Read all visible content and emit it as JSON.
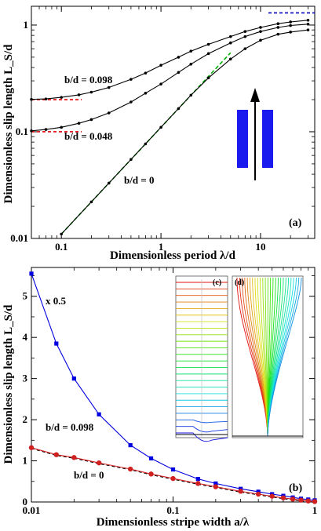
{
  "chart_data": [
    {
      "type": "line",
      "panel_label": "(a)",
      "xlabel": "Dimensionless period  λ/d",
      "ylabel": "Dimensionless slip length  L_S/d",
      "xscale": "log",
      "yscale": "log",
      "xlim": [
        0.05,
        35
      ],
      "ylim": [
        0.01,
        1.5
      ],
      "xticks": [
        "0.1",
        "1",
        "10"
      ],
      "yticks": [
        "0.01",
        "0.1",
        "1"
      ],
      "grid": false,
      "series": [
        {
          "name": "b/d = 0.098",
          "color": "#000000",
          "x": [
            0.05,
            0.07,
            0.1,
            0.15,
            0.2,
            0.3,
            0.5,
            0.7,
            1,
            1.5,
            2,
            3,
            5,
            7,
            10,
            15,
            20,
            30
          ],
          "y": [
            0.201,
            0.203,
            0.21,
            0.222,
            0.235,
            0.26,
            0.31,
            0.355,
            0.42,
            0.5,
            0.57,
            0.66,
            0.78,
            0.87,
            0.95,
            1.03,
            1.07,
            1.11
          ]
        },
        {
          "name": "b/d = 0.048",
          "color": "#000000",
          "x": [
            0.05,
            0.07,
            0.1,
            0.15,
            0.2,
            0.3,
            0.5,
            0.7,
            1,
            1.5,
            2,
            3,
            5,
            7,
            10,
            15,
            20,
            30
          ],
          "y": [
            0.102,
            0.105,
            0.11,
            0.12,
            0.13,
            0.15,
            0.19,
            0.23,
            0.28,
            0.36,
            0.43,
            0.54,
            0.68,
            0.78,
            0.87,
            0.95,
            0.99,
            1.02
          ]
        },
        {
          "name": "b/d = 0",
          "color": "#000000",
          "x": [
            0.1,
            0.2,
            0.3,
            0.5,
            0.7,
            1,
            1.5,
            2,
            3,
            5,
            7,
            10,
            15,
            20,
            30
          ],
          "y": [
            0.011,
            0.022,
            0.033,
            0.055,
            0.077,
            0.11,
            0.165,
            0.22,
            0.32,
            0.48,
            0.6,
            0.72,
            0.82,
            0.86,
            0.9
          ]
        }
      ],
      "asymptotes": [
        {
          "type": "linear",
          "color": "#00b000",
          "x": [
            0.1,
            5
          ],
          "y": [
            0.011,
            0.55
          ]
        },
        {
          "type": "horizontal",
          "color": "#e00000",
          "y": 0.2,
          "x": [
            0.05,
            0.16
          ]
        },
        {
          "type": "horizontal",
          "color": "#e00000",
          "y": 0.1,
          "x": [
            0.05,
            0.16
          ]
        },
        {
          "type": "horizontal",
          "color": "#0000c0",
          "y": 1.3,
          "x": [
            12,
            35
          ]
        }
      ]
    },
    {
      "type": "line",
      "panel_label": "(b)",
      "xlabel": "Dimensionless stripe width  a/λ",
      "ylabel": "Dimensionless slip length  L_S/d",
      "xscale": "log",
      "xlim": [
        0.01,
        1
      ],
      "ylim": [
        0,
        5.7
      ],
      "xticks": [
        "0.01",
        "0.1",
        "1"
      ],
      "yticks": [
        "0",
        "1",
        "2",
        "3",
        "4",
        "5"
      ],
      "grid": false,
      "annotation": "x 0.5",
      "series": [
        {
          "name": "b/d = 0.098",
          "color": "#0000e0",
          "marker": "square",
          "x": [
            0.01,
            0.015,
            0.02,
            0.03,
            0.05,
            0.07,
            0.1,
            0.15,
            0.2,
            0.3,
            0.4,
            0.5,
            0.6,
            0.7,
            0.8,
            0.9,
            1.0
          ],
          "y": [
            5.55,
            3.85,
            3.0,
            2.13,
            1.38,
            1.06,
            0.79,
            0.56,
            0.45,
            0.32,
            0.25,
            0.19,
            0.15,
            0.11,
            0.08,
            0.06,
            0.04
          ]
        },
        {
          "name": "b/d = 0",
          "color": "#d02020",
          "marker": "circle",
          "x": [
            0.01,
            0.015,
            0.02,
            0.03,
            0.05,
            0.07,
            0.1,
            0.15,
            0.2,
            0.3,
            0.4,
            0.5,
            0.6,
            0.7,
            0.8,
            0.9,
            1.0
          ],
          "y": [
            1.32,
            1.15,
            1.08,
            0.95,
            0.8,
            0.68,
            0.57,
            0.45,
            0.37,
            0.26,
            0.19,
            0.14,
            0.1,
            0.07,
            0.045,
            0.025,
            0.01
          ]
        }
      ],
      "insets": [
        "(c)",
        "(d)"
      ]
    }
  ]
}
